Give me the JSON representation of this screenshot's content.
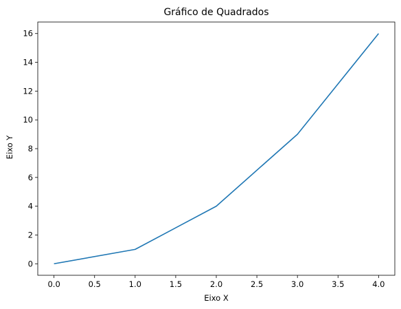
{
  "chart_data": {
    "type": "line",
    "title": "Gráfico de Quadrados",
    "xlabel": "Eixo X",
    "ylabel": "Eixo Y",
    "x": [
      0,
      1,
      2,
      3,
      4
    ],
    "series": [
      {
        "values": [
          0,
          1,
          4,
          9,
          16
        ],
        "color": "#1f77b4"
      }
    ],
    "xlim": [
      -0.2,
      4.2
    ],
    "ylim": [
      -0.8,
      16.8
    ],
    "xticks": [
      0.0,
      0.5,
      1.0,
      1.5,
      2.0,
      2.5,
      3.0,
      3.5,
      4.0
    ],
    "xtick_labels": [
      "0.0",
      "0.5",
      "1.0",
      "1.5",
      "2.0",
      "2.5",
      "3.0",
      "3.5",
      "4.0"
    ],
    "yticks": [
      0,
      2,
      4,
      6,
      8,
      10,
      12,
      14,
      16
    ],
    "ytick_labels": [
      "0",
      "2",
      "4",
      "6",
      "8",
      "10",
      "12",
      "14",
      "16"
    ],
    "grid": false,
    "legend": "none"
  }
}
